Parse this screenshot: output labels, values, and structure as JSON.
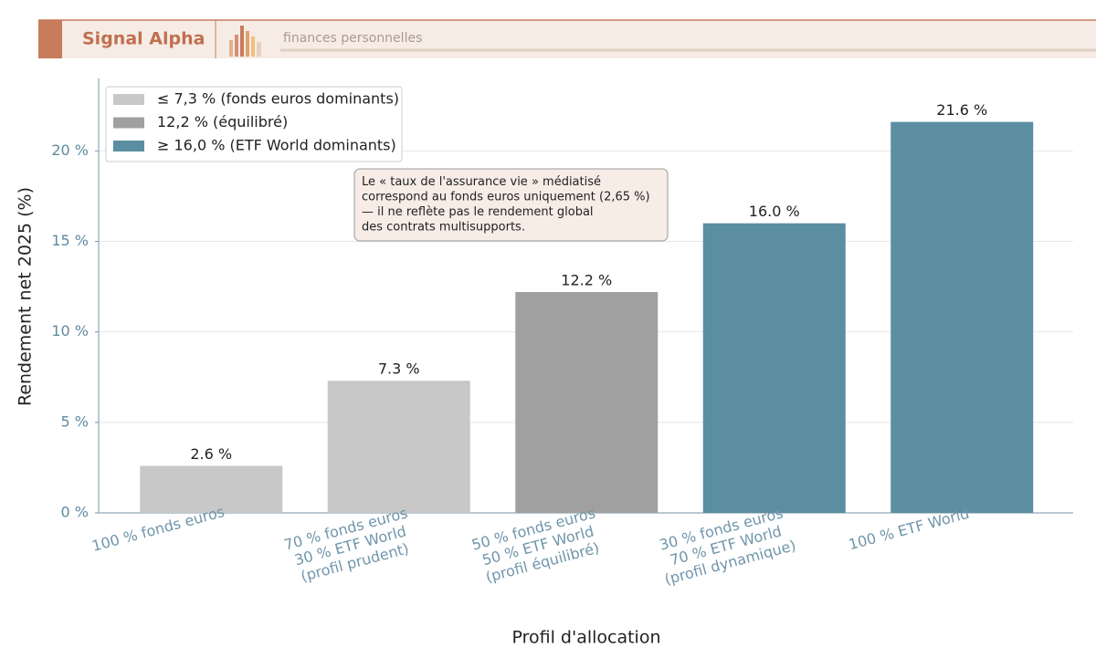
{
  "header": {
    "brand": "Signal Alpha",
    "tagline": "finances personnelles"
  },
  "chart_data": {
    "type": "bar",
    "categories": [
      "100 % fonds euros",
      "70 % fonds euros\n30 % ETF World\n(profil prudent)",
      "50 % fonds euros\n50 % ETF World\n(profil équilibré)",
      "30 % fonds euros\n70 % ETF World\n(profil dynamique)",
      "100 % ETF World"
    ],
    "values": [
      2.6,
      7.3,
      12.2,
      16.0,
      21.6
    ],
    "value_labels": [
      "2.6 %",
      "7.3 %",
      "12.2 %",
      "16.0 %",
      "21.6 %"
    ],
    "colors": [
      "#c8c8c8",
      "#c8c8c8",
      "#a0a0a0",
      "#5b8ea1",
      "#5b8ea1"
    ],
    "ylim": [
      0,
      24
    ],
    "yticks": [
      {
        "value": 0,
        "label": "0 %"
      },
      {
        "value": 5,
        "label": "5 %"
      },
      {
        "value": 10,
        "label": "10 %"
      },
      {
        "value": 15,
        "label": "15 %"
      },
      {
        "value": 20,
        "label": "20 %"
      }
    ],
    "grid": true,
    "x_label": "Profil d'allocation",
    "y_label": "Rendement net 2025 (%)",
    "legend": [
      {
        "label": "≤ 7,3 % (fonds euros dominants)",
        "color": "#c8c8c8"
      },
      {
        "label": "12,2 % (équilibré)",
        "color": "#a0a0a0"
      },
      {
        "label": "≥ 16,0 % (ETF World dominants)",
        "color": "#5b8ea1"
      }
    ],
    "annotation": "Le « taux de l'assurance vie » médiatisé\ncorrespond au fonds euros uniquement (2,65 %)\n— il ne reflète pas le rendement global\ndes contrats multisupports."
  }
}
